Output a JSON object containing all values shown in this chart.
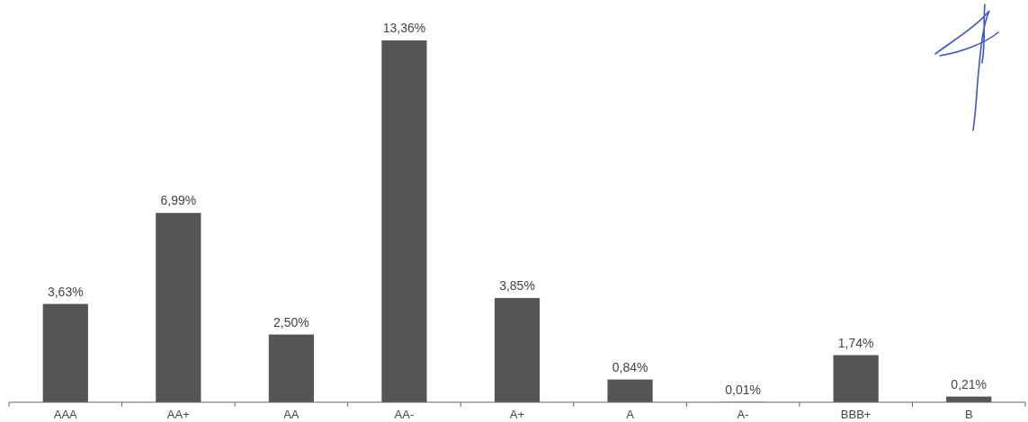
{
  "chart_data": {
    "type": "bar",
    "categories": [
      "AAA",
      "AA+",
      "AA",
      "AA-",
      "A+",
      "A",
      "A-",
      "BBB+",
      "B"
    ],
    "values": [
      3.63,
      6.99,
      2.5,
      13.36,
      3.85,
      0.84,
      0.01,
      1.74,
      0.21
    ],
    "value_labels": [
      "3,63%",
      "6,99%",
      "2,50%",
      "13,36%",
      "3,85%",
      "0,84%",
      "0,01%",
      "1,74%",
      "0,21%"
    ],
    "color": "#555555"
  }
}
